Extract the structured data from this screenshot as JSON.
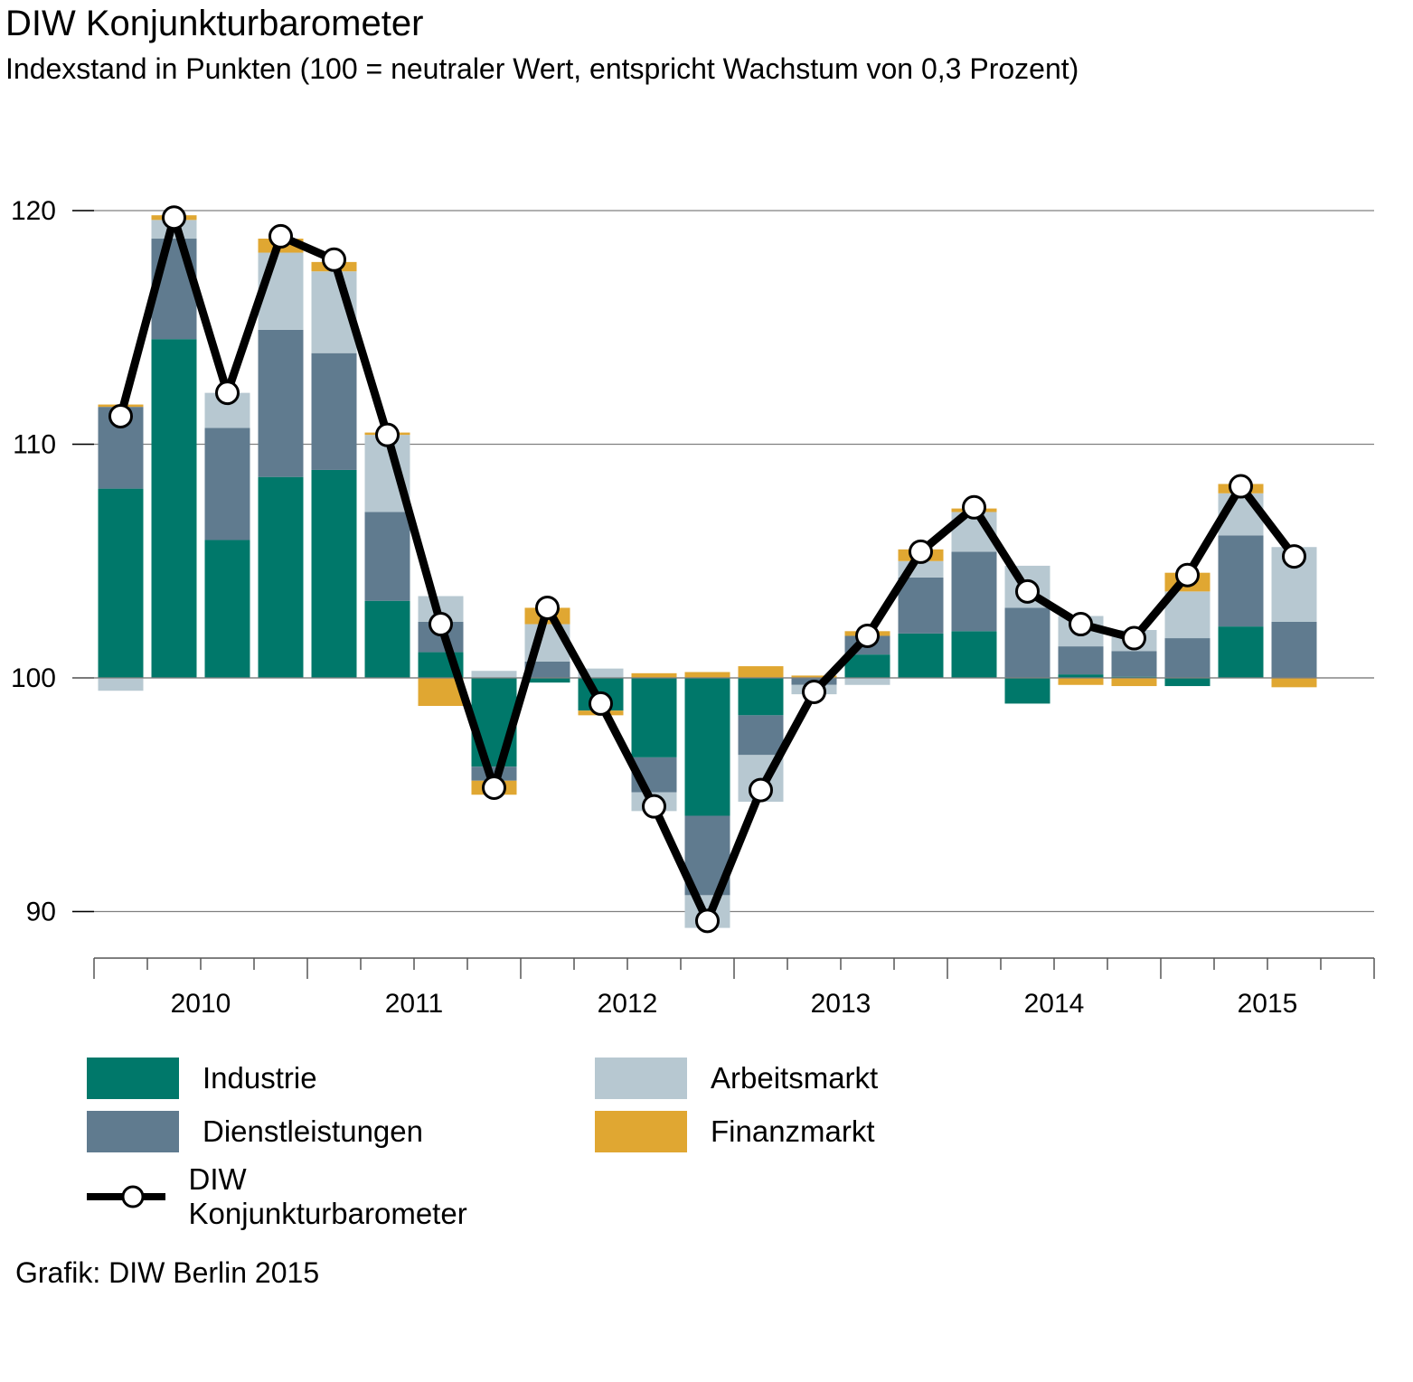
{
  "title": "DIW Konjunkturbarometer",
  "subtitle": "Indexstand in Punkten (100 = neutraler Wert, entspricht Wachstum von 0,3 Prozent)",
  "source": "Grafik: DIW Berlin 2015",
  "colors": {
    "Industrie": "#00786a",
    "Dienstleistungen": "#607b8f",
    "Arbeitsmarkt": "#b7c8d1",
    "Finanzmarkt": "#e0a732",
    "line": "#000000",
    "grid": "#808080"
  },
  "legend": {
    "industrie": "Industrie",
    "dienstleistungen": "Dienstleistungen",
    "arbeitsmarkt": "Arbeitsmarkt",
    "finanzmarkt": "Finanzmarkt",
    "barometer": "DIW Konjunkturbarometer"
  },
  "chart_data": {
    "type": "bar",
    "stacked": true,
    "baseline": 100,
    "title": "DIW Konjunkturbarometer",
    "subtitle": "Indexstand in Punkten (100 = neutraler Wert, entspricht Wachstum von 0,3 Prozent)",
    "xlabel": "",
    "ylabel": "",
    "ylim": [
      88,
      122
    ],
    "yticks": [
      90,
      100,
      110,
      120
    ],
    "grid": true,
    "legend_position": "bottom",
    "year_labels": [
      "2010",
      "2011",
      "2012",
      "2013",
      "2014",
      "2015"
    ],
    "quarters_per_year": 4,
    "categories": [
      "2010 Q1",
      "2010 Q2",
      "2010 Q3",
      "2010 Q4",
      "2011 Q1",
      "2011 Q2",
      "2011 Q3",
      "2011 Q4",
      "2012 Q1",
      "2012 Q2",
      "2012 Q3",
      "2012 Q4",
      "2013 Q1",
      "2013 Q2",
      "2013 Q3",
      "2013 Q4",
      "2014 Q1",
      "2014 Q2",
      "2014 Q3",
      "2014 Q4",
      "2015 Q1",
      "2015 Q2",
      "2015 Q3"
    ],
    "series": [
      {
        "name": "Industrie",
        "values": [
          8.1,
          14.5,
          5.9,
          8.6,
          8.9,
          3.3,
          1.1,
          -3.8,
          -0.2,
          -1.4,
          -3.4,
          -5.9,
          -1.6,
          0.0,
          1.0,
          1.9,
          2.0,
          -1.1,
          0.15,
          0.05,
          -0.35,
          2.2,
          0.0
        ]
      },
      {
        "name": "Dienstleistungen",
        "values": [
          3.5,
          4.3,
          4.8,
          6.3,
          5.0,
          3.8,
          1.3,
          -0.6,
          0.7,
          0.0,
          -1.5,
          -3.4,
          -1.7,
          -0.3,
          0.8,
          2.4,
          3.4,
          3.0,
          1.2,
          1.1,
          1.7,
          3.9,
          2.4
        ]
      },
      {
        "name": "Arbeitsmarkt",
        "values": [
          -0.55,
          0.8,
          1.5,
          3.3,
          3.5,
          3.3,
          1.1,
          0.3,
          1.6,
          0.4,
          -0.8,
          -1.4,
          -2.0,
          -0.4,
          -0.3,
          0.7,
          1.7,
          1.8,
          1.3,
          0.9,
          2.0,
          1.8,
          3.2
        ]
      },
      {
        "name": "Finanzmarkt",
        "values": [
          0.1,
          0.2,
          0.0,
          0.6,
          0.4,
          0.1,
          -1.2,
          -0.6,
          0.7,
          -0.2,
          0.2,
          0.25,
          0.5,
          0.1,
          0.2,
          0.5,
          0.15,
          0.0,
          -0.3,
          -0.35,
          0.8,
          0.4,
          -0.4
        ]
      }
    ],
    "line": {
      "name": "DIW Konjunkturbarometer",
      "values": [
        111.2,
        119.7,
        112.2,
        118.9,
        117.9,
        110.4,
        102.3,
        95.3,
        103.0,
        98.9,
        94.5,
        89.6,
        95.2,
        99.4,
        101.8,
        105.4,
        107.3,
        103.7,
        102.3,
        101.7,
        104.4,
        108.2,
        105.2
      ]
    }
  }
}
